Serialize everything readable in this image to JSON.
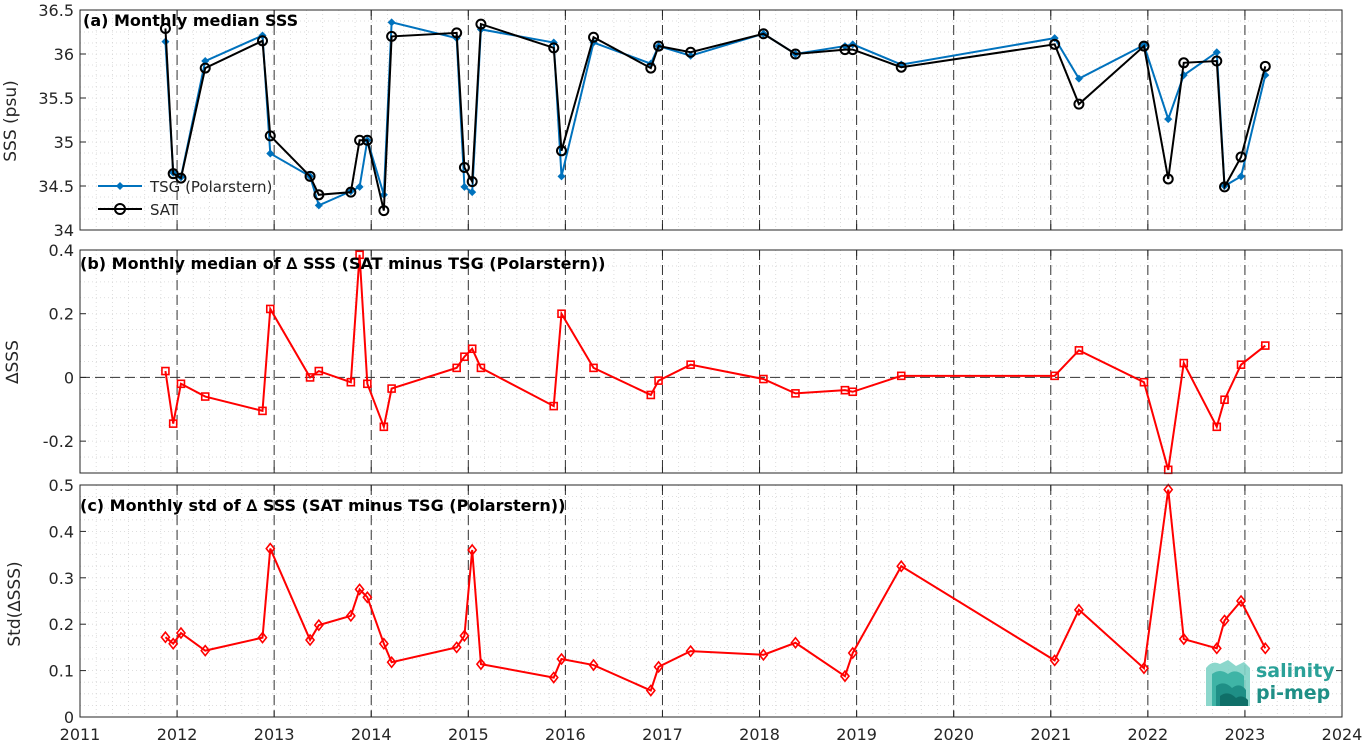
{
  "chart_data": [
    {
      "type": "line",
      "title": "(a) Monthly median SSS",
      "ylabel": "SSS (psu)",
      "xlim": [
        2011,
        2024
      ],
      "ylim": [
        34,
        36.5
      ],
      "yticks": [
        34,
        34.5,
        35,
        35.5,
        36,
        36.5
      ],
      "ytick_labels": [
        "34",
        "34.5",
        "35",
        "35.5",
        "36",
        "36.5"
      ],
      "grid": true,
      "legend_position": "bottom-left",
      "series": [
        {
          "name": "TSG (Polarstern)",
          "color": "#0072BD",
          "marker": "diamond-filled",
          "x": [
            2011.88,
            2011.96,
            2012.04,
            2012.29,
            2012.88,
            2012.96,
            2013.37,
            2013.46,
            2013.79,
            2013.88,
            2013.96,
            2014.13,
            2014.21,
            2014.88,
            2014.96,
            2015.04,
            2015.13,
            2015.88,
            2015.96,
            2016.29,
            2016.88,
            2016.96,
            2017.29,
            2018.04,
            2018.37,
            2018.88,
            2018.96,
            2019.46,
            2021.04,
            2021.29,
            2021.96,
            2022.21,
            2022.37,
            2022.71,
            2022.79,
            2022.96,
            2023.21
          ],
          "y": [
            36.14,
            34.65,
            34.6,
            35.92,
            36.21,
            34.87,
            34.61,
            34.28,
            34.44,
            34.49,
            35.02,
            34.4,
            36.36,
            36.18,
            34.49,
            34.43,
            36.28,
            36.13,
            34.61,
            36.13,
            35.89,
            36.09,
            35.98,
            36.23,
            36.0,
            36.09,
            36.11,
            35.88,
            36.18,
            35.72,
            36.1,
            35.26,
            35.76,
            36.02,
            34.5,
            34.61,
            35.76
          ]
        },
        {
          "name": "SAT",
          "color": "#000000",
          "marker": "circle-open",
          "x": [
            2011.88,
            2011.96,
            2012.04,
            2012.29,
            2012.88,
            2012.96,
            2013.37,
            2013.46,
            2013.79,
            2013.88,
            2013.96,
            2014.13,
            2014.21,
            2014.88,
            2014.96,
            2015.04,
            2015.13,
            2015.88,
            2015.96,
            2016.29,
            2016.88,
            2016.96,
            2017.29,
            2018.04,
            2018.37,
            2018.88,
            2018.96,
            2019.46,
            2021.04,
            2021.29,
            2021.96,
            2022.21,
            2022.37,
            2022.71,
            2022.79,
            2022.96,
            2023.21
          ],
          "y": [
            36.29,
            34.64,
            34.59,
            35.84,
            36.15,
            35.07,
            34.61,
            34.4,
            34.43,
            35.02,
            35.02,
            34.22,
            36.2,
            36.24,
            34.71,
            34.55,
            36.34,
            36.07,
            34.9,
            36.19,
            35.84,
            36.09,
            36.02,
            36.23,
            36.0,
            36.05,
            36.05,
            35.85,
            36.11,
            35.43,
            36.09,
            34.58,
            35.9,
            35.92,
            34.49,
            34.83,
            35.86
          ]
        }
      ]
    },
    {
      "type": "line",
      "title": "(b) Monthly median of ∆ SSS (SAT minus TSG (Polarstern))",
      "ylabel": "∆SSS",
      "xlim": [
        2011,
        2024
      ],
      "ylim": [
        -0.3,
        0.4
      ],
      "yticks": [
        -0.2,
        0,
        0.2,
        0.4
      ],
      "ytick_labels": [
        "-0.2",
        "0",
        "0.2",
        "0.4"
      ],
      "zero_line": true,
      "grid": true,
      "series": [
        {
          "color": "#FF0000",
          "marker": "square-open",
          "x": [
            2011.88,
            2011.96,
            2012.04,
            2012.29,
            2012.88,
            2012.96,
            2013.37,
            2013.46,
            2013.79,
            2013.88,
            2013.96,
            2014.13,
            2014.21,
            2014.88,
            2014.96,
            2015.04,
            2015.13,
            2015.88,
            2015.96,
            2016.29,
            2016.88,
            2016.96,
            2017.29,
            2018.04,
            2018.37,
            2018.88,
            2018.96,
            2019.46,
            2021.04,
            2021.29,
            2021.96,
            2022.21,
            2022.37,
            2022.71,
            2022.79,
            2022.96,
            2023.21
          ],
          "y": [
            0.02,
            -0.145,
            -0.02,
            -0.06,
            -0.105,
            0.215,
            0.0,
            0.02,
            -0.015,
            0.385,
            -0.02,
            -0.155,
            -0.035,
            0.03,
            0.065,
            0.09,
            0.03,
            -0.09,
            0.2,
            0.03,
            -0.055,
            -0.01,
            0.04,
            -0.005,
            -0.05,
            -0.04,
            -0.045,
            0.005,
            0.005,
            0.085,
            -0.015,
            -0.29,
            0.045,
            -0.155,
            -0.07,
            0.04,
            0.1
          ]
        }
      ]
    },
    {
      "type": "line",
      "title": "(c) Monthly std of ∆ SSS (SAT minus TSG (Polarstern))",
      "ylabel": "Std(∆SSS)",
      "xlim": [
        2011,
        2024
      ],
      "ylim": [
        0,
        0.5
      ],
      "yticks": [
        0,
        0.1,
        0.2,
        0.3,
        0.4,
        0.5
      ],
      "ytick_labels": [
        "0",
        "0.1",
        "0.2",
        "0.3",
        "0.4",
        "0.5"
      ],
      "xticks": [
        2011,
        2012,
        2013,
        2014,
        2015,
        2016,
        2017,
        2018,
        2019,
        2020,
        2021,
        2022,
        2023,
        2024
      ],
      "xtick_labels": [
        "2011",
        "2012",
        "2013",
        "2014",
        "2015",
        "2016",
        "2017",
        "2018",
        "2019",
        "2020",
        "2021",
        "2022",
        "2023",
        "2024"
      ],
      "grid": true,
      "series": [
        {
          "color": "#FF0000",
          "marker": "diamond-open",
          "x": [
            2011.88,
            2011.96,
            2012.04,
            2012.29,
            2012.88,
            2012.96,
            2013.37,
            2013.46,
            2013.79,
            2013.88,
            2013.96,
            2014.13,
            2014.21,
            2014.88,
            2014.96,
            2015.04,
            2015.13,
            2015.88,
            2015.96,
            2016.29,
            2016.88,
            2016.96,
            2017.29,
            2018.04,
            2018.37,
            2018.88,
            2018.96,
            2019.46,
            2021.04,
            2021.29,
            2021.96,
            2022.21,
            2022.37,
            2022.71,
            2022.79,
            2022.96,
            2023.21
          ],
          "y": [
            0.172,
            0.158,
            0.181,
            0.143,
            0.171,
            0.363,
            0.166,
            0.198,
            0.218,
            0.275,
            0.258,
            0.158,
            0.118,
            0.15,
            0.175,
            0.36,
            0.114,
            0.085,
            0.125,
            0.112,
            0.057,
            0.108,
            0.142,
            0.134,
            0.16,
            0.088,
            0.138,
            0.325,
            0.122,
            0.231,
            0.105,
            0.49,
            0.168,
            0.148,
            0.208,
            0.25,
            0.148
          ]
        }
      ]
    }
  ],
  "logo": {
    "line1": "salinity",
    "line2": "pi-mep",
    "color": "#2aa198"
  }
}
